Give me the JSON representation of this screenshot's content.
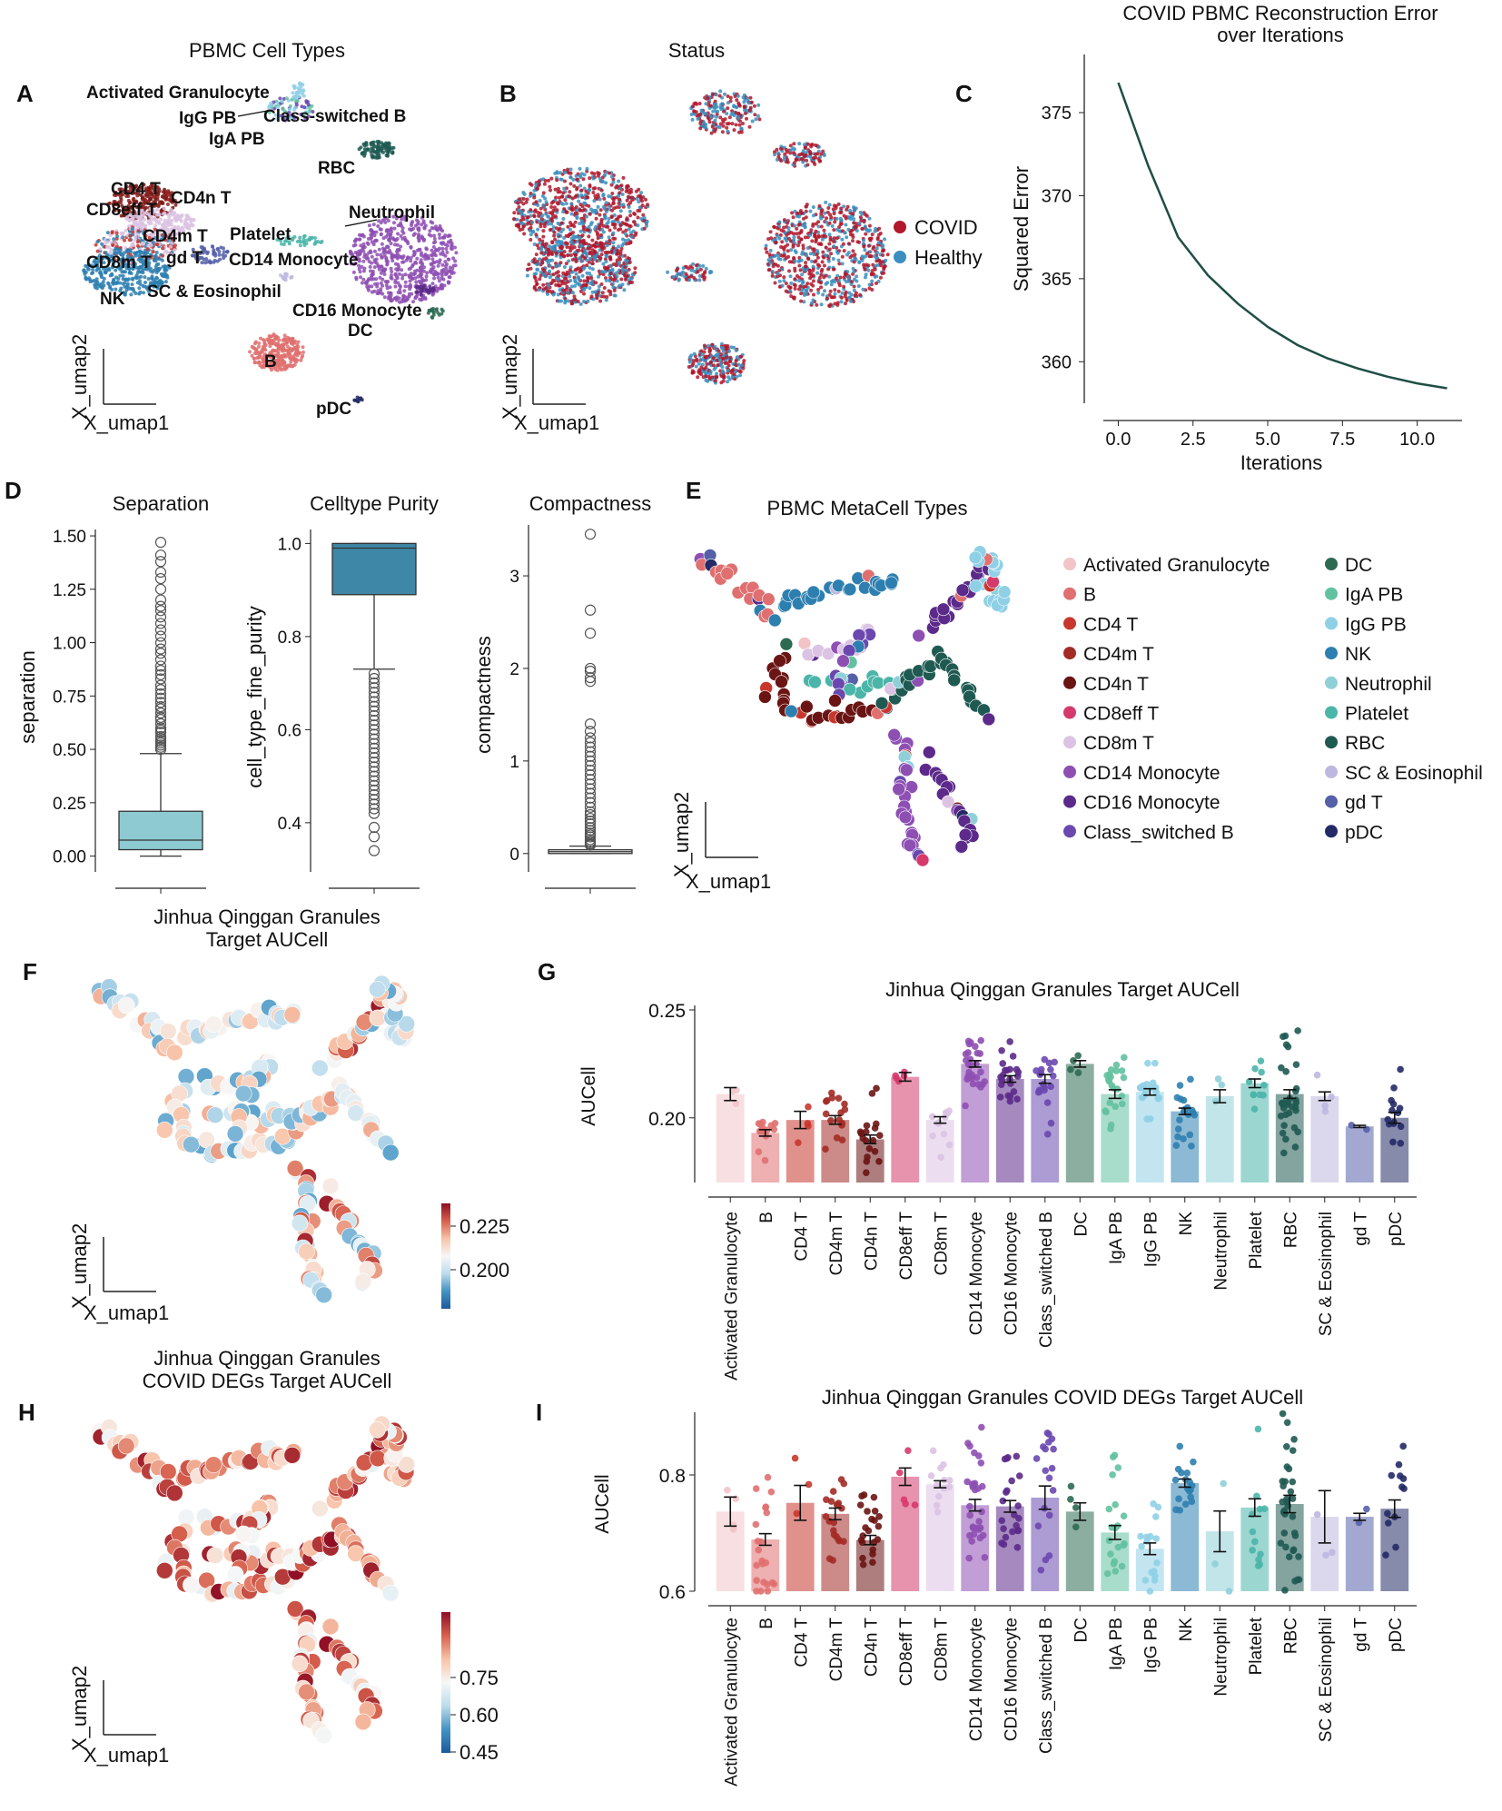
{
  "panel_letters": [
    "A",
    "B",
    "C",
    "D",
    "E",
    "F",
    "G",
    "H",
    "I"
  ],
  "colors": {
    "covid": "#b2182b",
    "healthy": "#3a8fbf",
    "line": "#1f4e45",
    "box1": "#8ecad2",
    "box2": "#3f87a6",
    "div_neg": "#2166ac",
    "div_pos": "#b2182b"
  },
  "umap_axes": {
    "x": "X_umap1",
    "y": "X_umap2"
  },
  "panelA": {
    "title": "PBMC Cell Types",
    "labels": [
      "Activated Granulocyte",
      "IgG PB",
      "Class-switched B",
      "IgA PB",
      "RBC",
      "CD4 T",
      "CD4n T",
      "CD8eff T",
      "Neutrophil",
      "CD4m T",
      "Platelet",
      "CD8m T",
      "gd T",
      "CD14 Monocyte",
      "NK",
      "SC & Eosinophil",
      "CD16 Monocyte",
      "DC",
      "B",
      "pDC"
    ]
  },
  "panelB": {
    "title": "Status",
    "legend": [
      {
        "label": "COVID",
        "color": "#b2182b"
      },
      {
        "label": "Healthy",
        "color": "#3a8fbf"
      }
    ]
  },
  "panelE": {
    "title": "PBMC MetaCell Types",
    "legend": [
      {
        "label": "Activated Granulocyte",
        "color": "#f2c4c8"
      },
      {
        "label": "B",
        "color": "#e07070"
      },
      {
        "label": "CD4 T",
        "color": "#c8372d"
      },
      {
        "label": "CD4m T",
        "color": "#a32b26"
      },
      {
        "label": "CD4n T",
        "color": "#6b1414"
      },
      {
        "label": "CD8eff T",
        "color": "#d63a6c"
      },
      {
        "label": "CD8m T",
        "color": "#dcc3e3"
      },
      {
        "label": "CD14 Monocyte",
        "color": "#8e4fb3"
      },
      {
        "label": "CD16 Monocyte",
        "color": "#5c2a8a"
      },
      {
        "label": "Class_switched B",
        "color": "#6a48b0"
      },
      {
        "label": "DC",
        "color": "#2c6b52"
      },
      {
        "label": "IgA PB",
        "color": "#63c1a0"
      },
      {
        "label": "IgG PB",
        "color": "#8fd0e6"
      },
      {
        "label": "NK",
        "color": "#2d7fb0"
      },
      {
        "label": "Neutrophil",
        "color": "#8fcfd8"
      },
      {
        "label": "Platelet",
        "color": "#4bb5a9"
      },
      {
        "label": "RBC",
        "color": "#1f5a52"
      },
      {
        "label": "SC & Eosinophil",
        "color": "#bdb8e0"
      },
      {
        "label": "gd T",
        "color": "#5560a8"
      },
      {
        "label": "pDC",
        "color": "#232a66"
      }
    ]
  },
  "panelF": {
    "title": [
      "Jinhua Qinggan Granules",
      "Target AUCell"
    ],
    "colorbar_ticks": [
      "0.225",
      "0.200"
    ]
  },
  "panelH": {
    "title": [
      "Jinhua Qinggan Granules",
      "COVID DEGs Target AUCell"
    ],
    "colorbar_ticks": [
      "0.75",
      "0.60",
      "0.45"
    ]
  },
  "chart_data": [
    {
      "id": "C",
      "type": "line",
      "title": [
        "COVID PBMC Reconstruction Error",
        "over Iterations"
      ],
      "xlabel": "Iterations",
      "ylabel": "Squared Error",
      "xlim": [
        -0.5,
        11.5
      ],
      "ylim": [
        357.5,
        378.5
      ],
      "xticks": [
        "0.0",
        "2.5",
        "5.0",
        "7.5",
        "10.0"
      ],
      "yticks": [
        "375",
        "370",
        "365",
        "360"
      ],
      "x": [
        0,
        1,
        2,
        3,
        4,
        5,
        6,
        7,
        8,
        9,
        10,
        11
      ],
      "y": [
        376.8,
        371.8,
        367.5,
        365.2,
        363.5,
        362.1,
        361.0,
        360.2,
        359.6,
        359.1,
        358.7,
        358.4
      ]
    },
    {
      "id": "D1",
      "type": "box",
      "title": "Separation",
      "ylabel": "separation",
      "ylim": [
        -0.04,
        1.53
      ],
      "yticks": [
        "1.50",
        "1.25",
        "1.00",
        "0.75",
        "0.50",
        "0.25",
        "0.00"
      ],
      "stats": {
        "q1": 0.03,
        "median": 0.075,
        "q3": 0.21,
        "whisker_low": 0.0,
        "whisker_high": 0.48
      },
      "outliers": [
        1.47,
        1.41,
        1.38,
        1.33,
        1.3,
        1.25,
        1.2,
        1.17,
        1.15,
        1.12,
        1.09,
        1.06,
        1.03,
        1.0,
        0.97,
        0.95,
        0.92,
        0.89,
        0.87,
        0.85,
        0.83,
        0.8,
        0.78,
        0.76,
        0.74,
        0.72,
        0.7,
        0.69,
        0.67,
        0.65,
        0.64,
        0.62,
        0.6,
        0.59,
        0.58,
        0.56,
        0.55,
        0.54,
        0.53,
        0.52,
        0.51,
        0.5
      ]
    },
    {
      "id": "D2",
      "type": "box",
      "title": "Celltype Purity",
      "ylabel": "cell_type_fine_purity",
      "ylim": [
        0.31,
        1.03
      ],
      "yticks": [
        "1.0",
        "0.8",
        "0.6",
        "0.4"
      ],
      "stats": {
        "q1": 0.89,
        "median": 0.99,
        "q3": 1.0,
        "whisker_low": 0.73,
        "whisker_high": 1.0
      },
      "outliers": [
        0.72,
        0.71,
        0.7,
        0.69,
        0.68,
        0.67,
        0.66,
        0.65,
        0.64,
        0.63,
        0.62,
        0.61,
        0.6,
        0.59,
        0.58,
        0.57,
        0.56,
        0.55,
        0.54,
        0.53,
        0.52,
        0.51,
        0.5,
        0.49,
        0.48,
        0.47,
        0.46,
        0.45,
        0.44,
        0.43,
        0.42,
        0.39,
        0.37,
        0.34
      ]
    },
    {
      "id": "D3",
      "type": "box",
      "title": "Compactness",
      "ylabel": "compactness",
      "ylim": [
        -0.12,
        3.55
      ],
      "yticks": [
        "3",
        "2",
        "1",
        "0"
      ],
      "stats": {
        "q1": 0.0,
        "median": 0.02,
        "q3": 0.04,
        "whisker_low": 0.0,
        "whisker_high": 0.08
      },
      "outliers": [
        3.45,
        2.63,
        2.38,
        2.0,
        1.97,
        1.9,
        1.86,
        1.4,
        1.32,
        1.25,
        1.2,
        1.15,
        1.1,
        1.05,
        1.0,
        0.95,
        0.9,
        0.85,
        0.8,
        0.75,
        0.7,
        0.65,
        0.6,
        0.55,
        0.5,
        0.45,
        0.42,
        0.38,
        0.35,
        0.32,
        0.28,
        0.25,
        0.22,
        0.2,
        0.18,
        0.15,
        0.13,
        0.11,
        0.1,
        0.09
      ]
    },
    {
      "id": "G",
      "type": "bar",
      "title": "Jinhua Qinggan Granules Target AUCell",
      "ylabel": "AUCell",
      "ylim": [
        0.17,
        0.25
      ],
      "yticks": [
        "0.25",
        "0.20"
      ],
      "categories": [
        "Activated Granulocyte",
        "B",
        "CD4 T",
        "CD4m T",
        "CD4n T",
        "CD8eff T",
        "CD8m T",
        "CD14 Monocyte",
        "CD16 Monocyte",
        "Class_switched B",
        "DC",
        "IgA PB",
        "IgG PB",
        "NK",
        "Neutrophil",
        "Platelet",
        "RBC",
        "SC & Eosinophil",
        "gd T",
        "pDC"
      ],
      "values": [
        0.211,
        0.193,
        0.199,
        0.199,
        0.19,
        0.219,
        0.199,
        0.225,
        0.218,
        0.218,
        0.225,
        0.211,
        0.212,
        0.203,
        0.21,
        0.216,
        0.211,
        0.21,
        0.196,
        0.2
      ],
      "errors": [
        0.003,
        0.0015,
        0.004,
        0.002,
        0.002,
        0.002,
        0.0015,
        0.0015,
        0.0015,
        0.002,
        0.0015,
        0.002,
        0.0015,
        0.0015,
        0.003,
        0.002,
        0.002,
        0.002,
        0.0005,
        0.0025
      ],
      "point_counts": [
        3,
        14,
        4,
        16,
        18,
        5,
        12,
        28,
        22,
        20,
        4,
        22,
        18,
        20,
        3,
        10,
        32,
        4,
        2,
        14
      ],
      "point_spread": [
        0.008,
        0.006,
        0.005,
        0.008,
        0.012,
        0.004,
        0.01,
        0.008,
        0.007,
        0.01,
        0.003,
        0.009,
        0.006,
        0.007,
        0.006,
        0.006,
        0.015,
        0.004,
        0.001,
        0.008
      ]
    },
    {
      "id": "I",
      "type": "bar",
      "title": "Jinhua Qinggan Granules COVID DEGs Target AUCell",
      "ylabel": "AUCell",
      "ylim": [
        0.6,
        0.9
      ],
      "yticks": [
        "0.8",
        "0.6"
      ],
      "categories": [
        "Activated Granulocyte",
        "B",
        "CD4 T",
        "CD4m T",
        "CD4n T",
        "CD8eff T",
        "CD8m T",
        "CD14 Monocyte",
        "CD16 Monocyte",
        "Class_switched B",
        "DC",
        "IgA PB",
        "IgG PB",
        "NK",
        "Neutrophil",
        "Platelet",
        "RBC",
        "SC & Eosinophil",
        "gd T",
        "pDC"
      ],
      "values": [
        0.737,
        0.689,
        0.752,
        0.733,
        0.688,
        0.797,
        0.784,
        0.748,
        0.746,
        0.761,
        0.737,
        0.701,
        0.673,
        0.786,
        0.703,
        0.744,
        0.75,
        0.728,
        0.728,
        0.742
      ],
      "errors": [
        0.025,
        0.01,
        0.03,
        0.01,
        0.008,
        0.015,
        0.006,
        0.01,
        0.01,
        0.02,
        0.015,
        0.012,
        0.01,
        0.007,
        0.035,
        0.015,
        0.015,
        0.045,
        0.006,
        0.015
      ],
      "point_counts": [
        4,
        22,
        3,
        20,
        22,
        5,
        12,
        30,
        22,
        18,
        4,
        20,
        16,
        18,
        3,
        12,
        34,
        3,
        2,
        12
      ],
      "point_spread": [
        0.05,
        0.06,
        0.04,
        0.05,
        0.05,
        0.04,
        0.03,
        0.06,
        0.05,
        0.08,
        0.03,
        0.07,
        0.05,
        0.03,
        0.06,
        0.06,
        0.08,
        0.08,
        0.01,
        0.06
      ]
    }
  ]
}
